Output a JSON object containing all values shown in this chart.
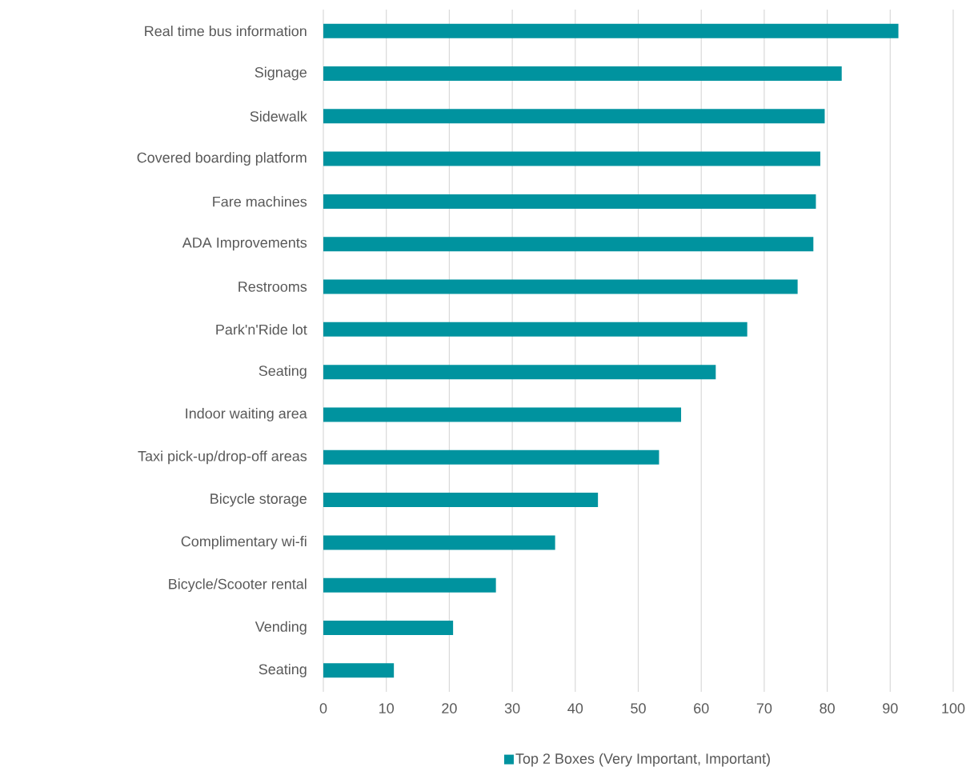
{
  "chart_data": {
    "type": "bar",
    "orientation": "horizontal",
    "categories": [
      "Real time bus information",
      "Signage",
      "Sidewalk",
      "Covered boarding platform",
      "Fare machines",
      "ADA Improvements",
      "Restrooms",
      "Park'n'Ride lot",
      "Seating",
      "Indoor waiting area",
      "Taxi pick-up/drop-off areas",
      "Bicycle storage",
      "Complimentary wi-fi",
      "Bicycle/Scooter rental",
      "Vending",
      "Seating"
    ],
    "series": [
      {
        "name": "Top 2 Boxes (Very Important, Important)",
        "color": "#00939f",
        "values": [
          91.3,
          82.3,
          79.6,
          78.9,
          78.2,
          77.8,
          75.3,
          67.3,
          62.3,
          56.8,
          53.3,
          43.6,
          36.8,
          27.4,
          20.6,
          11.2
        ]
      }
    ],
    "xlim": [
      0,
      100
    ],
    "xticks": [
      0,
      10,
      20,
      30,
      40,
      50,
      60,
      70,
      80,
      90,
      100
    ],
    "grid": "x",
    "legend": "bottom"
  }
}
